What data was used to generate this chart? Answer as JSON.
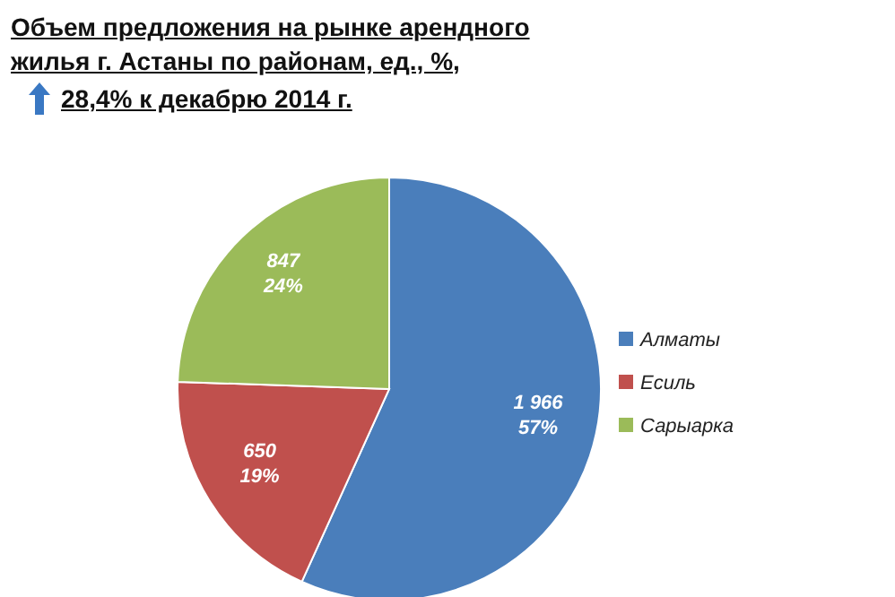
{
  "chart_data": {
    "type": "pie",
    "title": "Объем предложения на  рынке арендного жилья г. Астаны по районам, ед., %,",
    "subtitle": "28,4% к декабрю 2014 г.",
    "categories": [
      "Алматы",
      "Есиль",
      "Сарыарка"
    ],
    "values": [
      1966,
      650,
      847
    ],
    "colors": [
      "#4a7ebb",
      "#c0504d",
      "#9bbb59"
    ],
    "value_labels": [
      "1 966\n57%",
      "650\n19%",
      "847\n24%"
    ],
    "legend": "right"
  }
}
